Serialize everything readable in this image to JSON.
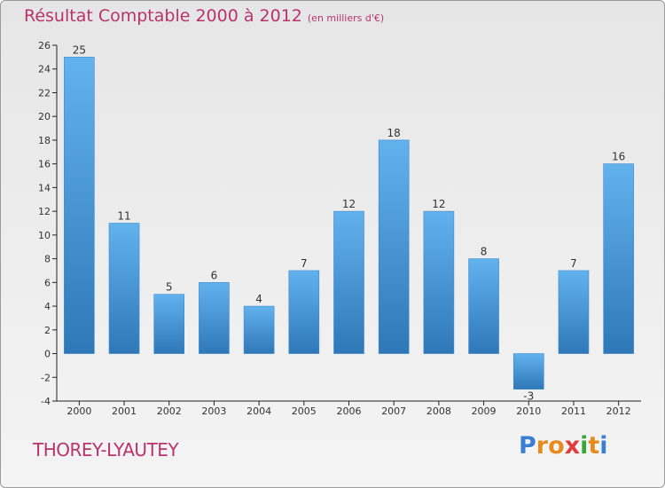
{
  "title": "Résultat Comptable 2000 à 2012",
  "subtitle": "(en milliers d'€)",
  "commune": "THOREY-LYAUTEY",
  "logo": {
    "letters": [
      "P",
      "r",
      "o",
      "x",
      "i",
      "t",
      "i"
    ],
    "colors": [
      "#3a7fd4",
      "#e98a1e",
      "#e98a1e",
      "#e23a3a",
      "#3aa53a",
      "#e98a1e",
      "#3a7fd4"
    ]
  },
  "colors": {
    "title": "#b8336a",
    "bar_light": "#62b2ee",
    "bar_dark": "#2f78b8",
    "axis": "#222222",
    "grid": "#c8c8c8"
  },
  "chart_data": {
    "type": "bar",
    "title": "Résultat Comptable 2000 à 2012",
    "subtitle": "(en milliers d'€)",
    "categories": [
      "2000",
      "2001",
      "2002",
      "2003",
      "2004",
      "2005",
      "2006",
      "2007",
      "2008",
      "2009",
      "2010",
      "2011",
      "2012"
    ],
    "values": [
      25,
      11,
      5,
      6,
      4,
      7,
      12,
      18,
      12,
      8,
      -3,
      7,
      16
    ],
    "ylim": [
      -4,
      26
    ],
    "yticks": [
      -4,
      -2,
      0,
      2,
      4,
      6,
      8,
      10,
      12,
      14,
      16,
      18,
      20,
      22,
      24,
      26
    ],
    "xlabel": "",
    "ylabel": "",
    "grid": false
  }
}
